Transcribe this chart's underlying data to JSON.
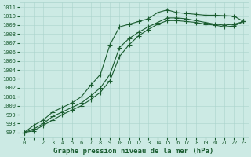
{
  "xlabel": "Graphe pression niveau de la mer (hPa)",
  "xlim": [
    -0.5,
    23.5
  ],
  "ylim": [
    996.5,
    1011.5
  ],
  "yticks": [
    997,
    998,
    999,
    1000,
    1001,
    1002,
    1003,
    1004,
    1005,
    1006,
    1007,
    1008,
    1009,
    1010,
    1011
  ],
  "xticks": [
    0,
    1,
    2,
    3,
    4,
    5,
    6,
    7,
    8,
    9,
    10,
    11,
    12,
    13,
    14,
    15,
    16,
    17,
    18,
    19,
    20,
    21,
    22,
    23
  ],
  "bg_color": "#cceae4",
  "grid_color": "#aad4cc",
  "line_color": "#1a5c30",
  "line1_y": [
    997.0,
    997.8,
    998.4,
    999.3,
    999.8,
    1000.3,
    1001.0,
    1002.3,
    1003.5,
    1006.8,
    1008.8,
    1009.1,
    1009.4,
    1009.7,
    1010.4,
    1010.7,
    1010.4,
    1010.3,
    1010.2,
    1010.1,
    1010.1,
    1010.05,
    1010.0,
    1009.4
  ],
  "line2_y": [
    997.0,
    997.4,
    998.0,
    998.8,
    999.3,
    999.8,
    1000.3,
    1001.1,
    1002.0,
    1003.5,
    1006.5,
    1007.5,
    1008.2,
    1008.8,
    1009.3,
    1009.8,
    1009.8,
    1009.7,
    1009.5,
    1009.3,
    1009.1,
    1009.0,
    1009.1,
    1009.4
  ],
  "line3_y": [
    997.0,
    997.2,
    997.8,
    998.4,
    999.0,
    999.5,
    1000.0,
    1000.7,
    1001.5,
    1002.8,
    1005.5,
    1006.8,
    1007.8,
    1008.5,
    1009.1,
    1009.5,
    1009.5,
    1009.4,
    1009.3,
    1009.1,
    1009.0,
    1008.8,
    1008.9,
    1009.4
  ],
  "marker": "+",
  "marker_size": 4,
  "line_width": 0.8,
  "tick_fontsize": 5.0,
  "label_fontsize": 6.5,
  "fig_width": 3.2,
  "fig_height": 2.0,
  "dpi": 100
}
